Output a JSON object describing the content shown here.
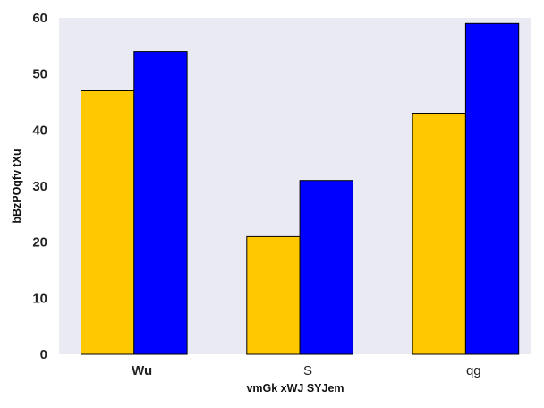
{
  "chart_data": {
    "type": "bar",
    "title": "",
    "xlabel": "vmGk xWJ SYJem",
    "ylabel": "bBzPOqfv tXu",
    "categories": [
      "Wu",
      "S",
      "qg"
    ],
    "category_label_weights": [
      "bold",
      "normal",
      "normal"
    ],
    "series": [
      {
        "values": [
          47,
          21,
          43
        ],
        "color": "#FFC800"
      },
      {
        "values": [
          54,
          31,
          59
        ],
        "color": "#0000FF"
      }
    ],
    "ylim": [
      0,
      60
    ],
    "yticks": [
      0,
      10,
      20,
      30,
      40,
      50,
      60
    ],
    "grid": false,
    "legend": "none",
    "plot_background": "#E9EAF2",
    "bar_edge_color": "#000000"
  }
}
